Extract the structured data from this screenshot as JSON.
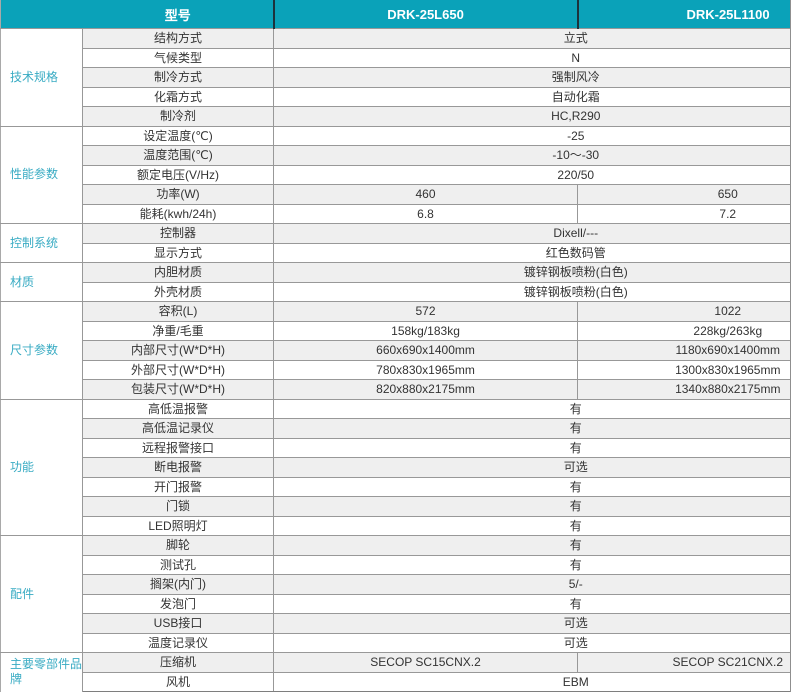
{
  "colors": {
    "header_bg": "#0aa2b9",
    "header_divider": "#1d333c",
    "category_text": "#38abc3",
    "row_alt_bg": "#efefef",
    "border": "#989898"
  },
  "header": {
    "col_model": "型号",
    "models": [
      "DRK-25L650",
      "DRK-25L1100"
    ]
  },
  "sections": [
    {
      "category": "技术规格",
      "rows": [
        {
          "label": "结构方式",
          "value": "立式"
        },
        {
          "label": "气候类型",
          "value": "N"
        },
        {
          "label": "制冷方式",
          "value": "强制风冷"
        },
        {
          "label": "化霜方式",
          "value": "自动化霜"
        },
        {
          "label": "制冷剂",
          "value": "HC,R290"
        }
      ]
    },
    {
      "category": "性能参数",
      "rows": [
        {
          "label": "设定温度(℃)",
          "value": "-25"
        },
        {
          "label": "温度范围(℃)",
          "value": "-10～-30"
        },
        {
          "label": "额定电压(V/Hz)",
          "value": "220/50"
        },
        {
          "label": "功率(W)",
          "values": [
            "460",
            "650"
          ]
        },
        {
          "label": "能耗(kwh/24h)",
          "values": [
            "6.8",
            "7.2"
          ]
        }
      ]
    },
    {
      "category": "控制系统",
      "rows": [
        {
          "label": "控制器",
          "value": "Dixell/---"
        },
        {
          "label": "显示方式",
          "value": "红色数码管"
        }
      ]
    },
    {
      "category": "材质",
      "rows": [
        {
          "label": "内胆材质",
          "value": "镀锌钢板喷粉(白色)"
        },
        {
          "label": "外壳材质",
          "value": "镀锌钢板喷粉(白色)"
        }
      ]
    },
    {
      "category": "尺寸参数",
      "rows": [
        {
          "label": "容积(L)",
          "values": [
            "572",
            "1022"
          ]
        },
        {
          "label": "净重/毛重",
          "values": [
            "158kg/183kg",
            "228kg/263kg"
          ]
        },
        {
          "label": "内部尺寸(W*D*H)",
          "values": [
            "660x690x1400mm",
            "1180x690x1400mm"
          ]
        },
        {
          "label": "外部尺寸(W*D*H)",
          "values": [
            "780x830x1965mm",
            "1300x830x1965mm"
          ]
        },
        {
          "label": "包装尺寸(W*D*H)",
          "values": [
            "820x880x2175mm",
            "1340x880x2175mm"
          ]
        }
      ]
    },
    {
      "category": "功能",
      "rows": [
        {
          "label": "高低温报警",
          "value": "有"
        },
        {
          "label": "高低温记录仪",
          "value": "有"
        },
        {
          "label": "远程报警接口",
          "value": "有"
        },
        {
          "label": "断电报警",
          "value": "可选"
        },
        {
          "label": "开门报警",
          "value": "有"
        },
        {
          "label": "门锁",
          "value": "有"
        },
        {
          "label": "LED照明灯",
          "value": "有"
        }
      ]
    },
    {
      "category": "配件",
      "rows": [
        {
          "label": "脚轮",
          "value": "有"
        },
        {
          "label": "测试孔",
          "value": "有"
        },
        {
          "label": "搁架(内门)",
          "value": "5/-"
        },
        {
          "label": "发泡门",
          "value": "有"
        },
        {
          "label": "USB接口",
          "value": "可选"
        },
        {
          "label": "温度记录仪",
          "value": "可选"
        }
      ]
    },
    {
      "category": "主要零部件品牌",
      "rows": [
        {
          "label": "压缩机",
          "values": [
            "SECOP SC15CNX.2",
            "SECOP SC21CNX.2"
          ]
        },
        {
          "label": "风机",
          "value": "EBM"
        }
      ]
    }
  ]
}
